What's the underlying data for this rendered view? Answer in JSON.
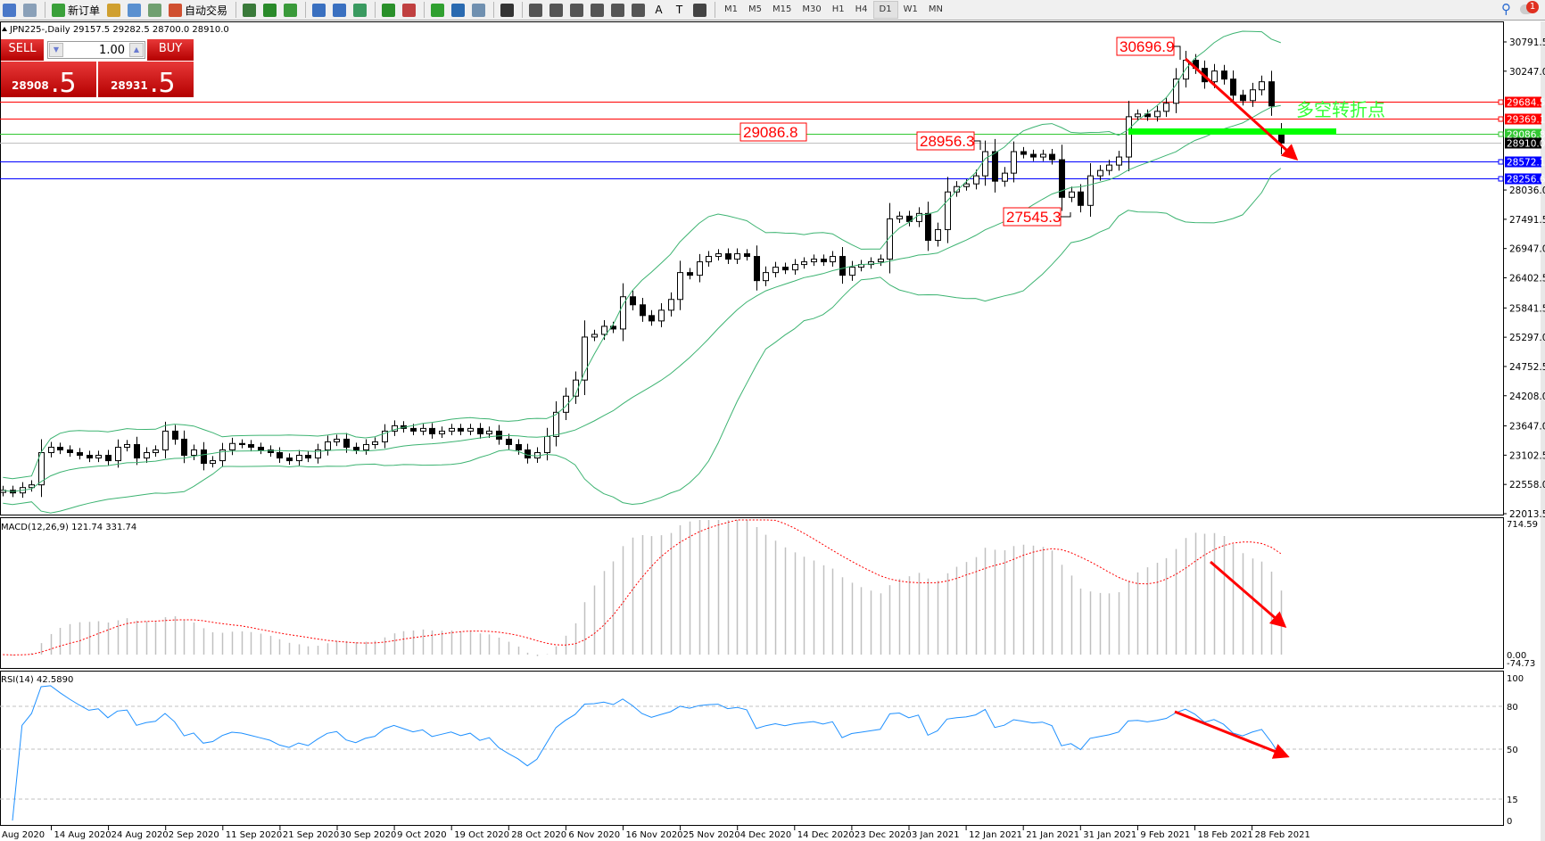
{
  "toolbar": {
    "items": [
      {
        "icon": "new-chart-icon",
        "label": "",
        "color": "#4a78c8"
      },
      {
        "icon": "zoom-window-icon",
        "label": "",
        "color": "#8aa0b8"
      },
      {
        "icon": "new-order-icon",
        "label": "新订单",
        "color": "#3aa03a"
      },
      {
        "icon": "metaeditor-icon",
        "label": "",
        "color": "#d0a030"
      },
      {
        "icon": "history-center-icon",
        "label": "",
        "color": "#5a90d0"
      },
      {
        "icon": "signals-icon",
        "label": "",
        "color": "#70a070"
      },
      {
        "icon": "auto-trading-icon",
        "label": "自动交易",
        "color": "#d05030"
      },
      {
        "icon": "bar-chart-icon",
        "label": "",
        "color": "#3a7a3a"
      },
      {
        "icon": "candlestick-icon",
        "label": "",
        "color": "#2a8a2a"
      },
      {
        "icon": "line-chart-icon",
        "label": "",
        "color": "#3a9a3a"
      },
      {
        "icon": "zoom-in-icon",
        "label": "",
        "color": "#3a70c0"
      },
      {
        "icon": "zoom-out-icon",
        "label": "",
        "color": "#3a70c0"
      },
      {
        "icon": "tile-windows-icon",
        "label": "",
        "color": "#3a9a60"
      },
      {
        "icon": "auto-scroll-icon",
        "label": "",
        "color": "#2a902a"
      },
      {
        "icon": "chart-shift-icon",
        "label": "",
        "color": "#c04040"
      },
      {
        "icon": "indicators-icon",
        "label": "",
        "color": "#30a030"
      },
      {
        "icon": "periods-icon",
        "label": "",
        "color": "#2a6ab0"
      },
      {
        "icon": "templates-icon",
        "label": "",
        "color": "#7090b0"
      },
      {
        "icon": "cursor-icon",
        "label": "",
        "color": "#333333"
      },
      {
        "icon": "crosshair-icon",
        "label": "",
        "color": "#555555"
      },
      {
        "icon": "vertical-line-icon",
        "label": "",
        "color": "#555555"
      },
      {
        "icon": "horizontal-line-icon",
        "label": "",
        "color": "#555555"
      },
      {
        "icon": "trendline-icon",
        "label": "",
        "color": "#555555"
      },
      {
        "icon": "equidistant-channel-icon",
        "label": "",
        "color": "#555555"
      },
      {
        "icon": "fibonacci-icon",
        "label": "",
        "color": "#555555"
      },
      {
        "icon": "text-icon",
        "label": "A",
        "color": "#f0f0f0"
      },
      {
        "icon": "text-label-icon",
        "label": "T",
        "color": "#f0f0f0"
      },
      {
        "icon": "arrows-icon",
        "label": "",
        "color": "#444444"
      }
    ],
    "timeframes": [
      "M1",
      "M5",
      "M15",
      "M30",
      "H1",
      "H4",
      "D1",
      "W1",
      "MN"
    ],
    "active_timeframe": "D1",
    "notification_count": "1"
  },
  "chart": {
    "header": "JPN225-,Daily  29157.5 29282.5 28700.0 28910.0",
    "last_ohlc": [
      29157.5,
      29282.5,
      28700.0,
      28910.0
    ],
    "trade_panel": {
      "sell_label": "SELL",
      "buy_label": "BUY",
      "lot": "1.00",
      "sell_price_main": "28908",
      "sell_price_pips": ".5",
      "buy_price_main": "28931",
      "buy_price_pips": ".5"
    },
    "price_axis": [
      "30791.5",
      "30247.0",
      "28036.0",
      "27491.5",
      "26947.0",
      "26402.5",
      "25841.5",
      "25297.0",
      "24752.5",
      "24208.0",
      "23647.0",
      "23102.5",
      "22558.0",
      "22013.5"
    ],
    "price_range": [
      22013.5,
      30791.5
    ],
    "levels": [
      {
        "value": "29684.5",
        "color": "#ff0000"
      },
      {
        "value": "29369.1",
        "color": "#ff0000"
      },
      {
        "value": "29086.8",
        "color": "#32c832"
      },
      {
        "value": "28910.0",
        "color": "#000000",
        "line": "#c0c0c0"
      },
      {
        "value": "28572.1",
        "color": "#0000ff"
      },
      {
        "value": "28256.6",
        "color": "#0000ff"
      }
    ],
    "annotations": {
      "high_label": "30696.9",
      "level_label": "29086.8",
      "mid_high_label": "28956.3",
      "low_label": "27545.3",
      "turning_point_text": "多空转折点"
    },
    "closes": [
      22450,
      22400,
      22500,
      22550,
      23150,
      23250,
      23200,
      23150,
      23100,
      23050,
      23100,
      23000,
      23250,
      23300,
      23050,
      23150,
      23200,
      23550,
      23400,
      23100,
      23200,
      22950,
      23000,
      23200,
      23320,
      23300,
      23250,
      23200,
      23150,
      23050,
      23000,
      23100,
      23050,
      23200,
      23350,
      23400,
      23250,
      23200,
      23300,
      23350,
      23550,
      23650,
      23600,
      23550,
      23600,
      23500,
      23550,
      23600,
      23550,
      23600,
      23500,
      23550,
      23400,
      23300,
      23200,
      23050,
      23150,
      23450,
      23900,
      24200,
      24500,
      25300,
      25350,
      25500,
      25450,
      26050,
      25900,
      25700,
      25600,
      25800,
      26000,
      26500,
      26450,
      26700,
      26800,
      26850,
      26750,
      26850,
      26800,
      26350,
      26500,
      26600,
      26550,
      26650,
      26700,
      26750,
      26700,
      26800,
      26450,
      26600,
      26650,
      26700,
      26750,
      27500,
      27550,
      27450,
      27600,
      27100,
      27300,
      28000,
      28100,
      28150,
      28300,
      28750,
      28200,
      28350,
      28750,
      28700,
      28650,
      28700,
      28600,
      27900,
      28000,
      27750,
      28300,
      28400,
      28500,
      28650,
      29400,
      29450,
      29400,
      29500,
      29650,
      30100,
      30450,
      30300,
      30050,
      30250,
      30100,
      29800,
      29700,
      29900,
      30050,
      29600,
      28910
    ],
    "dates": [
      "Aug 2020",
      "14 Aug 2020",
      "24 Aug 2020",
      "2 Sep 2020",
      "11 Sep 2020",
      "21 Sep 2020",
      "30 Sep 2020",
      "9 Oct 2020",
      "19 Oct 2020",
      "28 Oct 2020",
      "6 Nov 2020",
      "16 Nov 2020",
      "25 Nov 2020",
      "4 Dec 2020",
      "14 Dec 2020",
      "23 Dec 2020",
      "3 Jan 2021",
      "12 Jan 2021",
      "21 Jan 2021",
      "31 Jan 2021",
      "9 Feb 2021",
      "18 Feb 2021",
      "28 Feb 2021"
    ]
  },
  "macd": {
    "label": "MACD(12,26,9) 121.74 331.74",
    "axis": [
      "714.59",
      "0.00",
      "-74.73"
    ],
    "range": [
      -74.73,
      714.59
    ]
  },
  "rsi": {
    "label": "RSI(14) 42.5890",
    "axis": [
      "100",
      "80",
      "50",
      "15",
      "0"
    ],
    "levels": [
      80,
      50,
      15
    ]
  },
  "colors": {
    "bands": "#3cb371",
    "macd_hist": "#c0c0c0",
    "macd_signal": "#ff0000",
    "rsi_line": "#1e90ff",
    "arrow": "#ff0000",
    "turning_point": "#33ff33",
    "trade_button": "#d01818"
  }
}
